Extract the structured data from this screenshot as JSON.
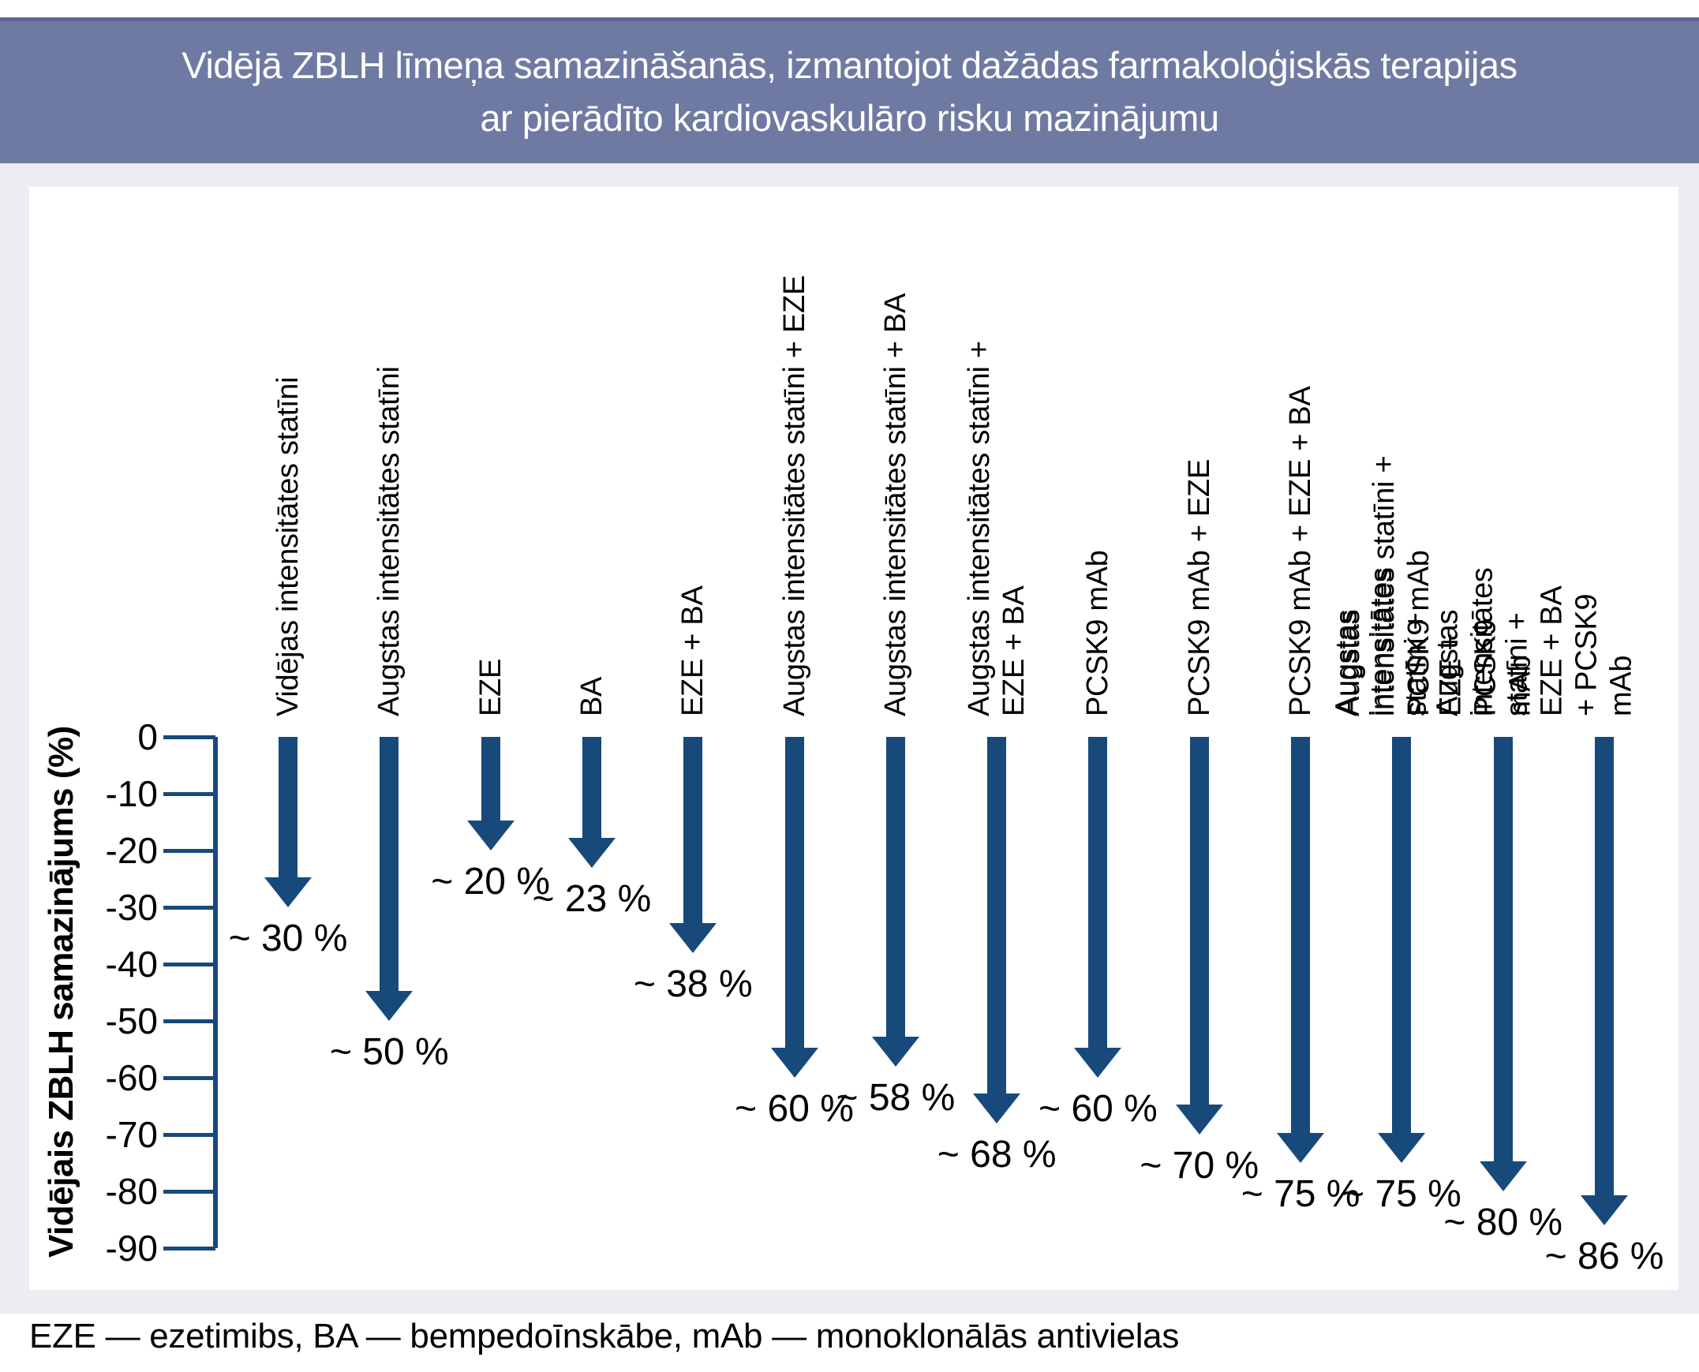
{
  "title": {
    "line1": "Vidējā ZBLH līmeņa samazināšanās, izmantojot dažādas farmakoloģiskās terapijas",
    "line2": "ar pierādīto kardiovaskulāro risku mazinājumu"
  },
  "footer": "EZE — ezetimibs, BA — bempedoīnskābe, mAb — monoklonālās antivielas",
  "colors": {
    "title_bar": "#6F7AA3",
    "title_bar_edge": "#5D6994",
    "background_band": "#EBEDF3",
    "card": "#FFFFFF",
    "arrow": "#17497B",
    "text": "#000000",
    "title_text": "#FFFFFF"
  },
  "chart_data": {
    "type": "bar",
    "variant": "downward-arrows",
    "title": "Vidējā ZBLH līmeņa samazināšanās, izmantojot dažādas farmakoloģiskās terapijas ar pierādīto kardiovaskulāro risku mazinājumu",
    "ylabel": "Vidējais ZBLH samazinājums (%)",
    "ylim": [
      -90,
      0
    ],
    "yticks": [
      0,
      -10,
      -20,
      -30,
      -40,
      -50,
      -60,
      -70,
      -80,
      -90
    ],
    "grid": false,
    "legend": false,
    "categories": [
      "Vidējas intensitātes statīni",
      "Augstas intensitātes statīni",
      "EZE",
      "BA",
      "EZE + BA",
      "Augstas intensitātes statīni + EZE",
      "Augstas intensitātes statīni + BA",
      "Augstas intensitātes statīni + EZE + BA",
      "PCSK9 mAb",
      "PCSK9 mAb + EZE",
      "PCSK9 mAb + EZE + BA",
      "Augstas intensitātes statīni + PCSK9 mAb",
      "Augstas intensitātes statīni + EZE + PCSK9 mAb",
      "Augstas intensitātes statīni + EZE + BA + PCSK9 mAb"
    ],
    "category_lines": [
      [
        "Vidējas intensitātes statīni"
      ],
      [
        "Augstas intensitātes statīni"
      ],
      [
        "EZE"
      ],
      [
        "BA"
      ],
      [
        "EZE + BA"
      ],
      [
        "Augstas intensitātes statīni + EZE"
      ],
      [
        "Augstas intensitātes statīni + BA"
      ],
      [
        "Augstas intensitātes statīni +",
        "EZE + BA"
      ],
      [
        "PCSK9 mAb"
      ],
      [
        "PCSK9 mAb + EZE"
      ],
      [
        "PCSK9 mAb + EZE + BA"
      ],
      [
        "Augstas intensitātes statīni +",
        "PCSK9 mAb"
      ],
      [
        "Augstas intensitātes statīni +",
        "EZE + PCSK9 mAb"
      ],
      [
        "Augstas intensitātes statīni +",
        "EZE + BA + PCSK9 mAb"
      ]
    ],
    "values": [
      -30,
      -50,
      -20,
      -23,
      -38,
      -60,
      -58,
      -68,
      -60,
      -70,
      -75,
      -75,
      -80,
      -86
    ],
    "value_labels": [
      "~ 30 %",
      "~ 50 %",
      "~ 20 %",
      "~ 23 %",
      "~ 38 %",
      "~ 60 %",
      "~ 58 %",
      "~ 68 %",
      "~ 60 %",
      "~ 70 %",
      "~ 75 %",
      "~ 75 %",
      "~ 80 %",
      "~ 86 %"
    ]
  }
}
